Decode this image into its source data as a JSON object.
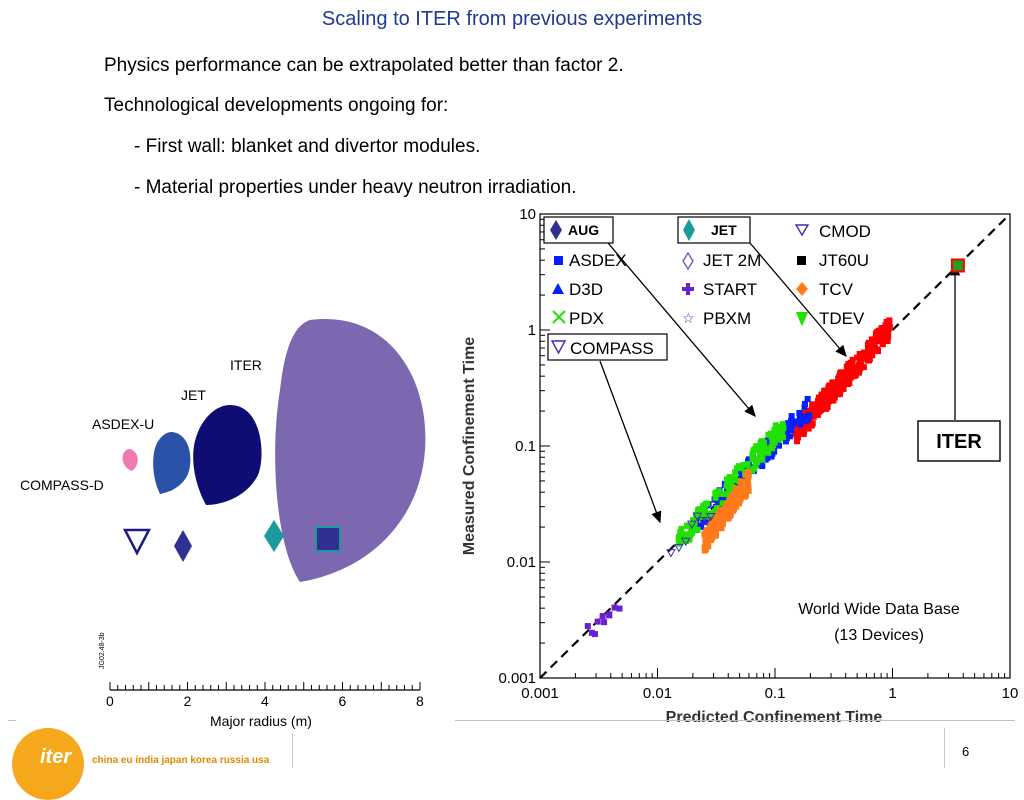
{
  "slide": {
    "title": "Scaling to ITER from previous experiments",
    "bullets": [
      "Physics performance can be extrapolated better than factor 2.",
      "Technological developments ongoing for:",
      "- First wall: blanket and divertor modules.",
      "- Material properties under heavy neutron irradiation."
    ],
    "page_number": "6",
    "logo_text": "iter",
    "tagline": "china eu india japan korea russia usa"
  },
  "colors": {
    "title": "#1f3a93",
    "iter_shape": "#7b68b0",
    "jet_shape": "#0d0d73",
    "asdex_shape": "#2a52a8",
    "compass_shape": "#f07ab0",
    "aug": "#2e3192",
    "jet_marker": "#1a9a9a",
    "red": "#ff0000",
    "green": "#22e000",
    "blue": "#0020ff",
    "orange": "#ff7a1a",
    "purple": "#6a1fd0"
  },
  "chart_data": [
    {
      "type": "diagram",
      "xlabel": "Major radius (m)",
      "xticks": [
        "0",
        "2",
        "4",
        "6",
        "8"
      ],
      "xlim": [
        0,
        8
      ],
      "vertical_tick_label": "JG02.48-3b",
      "devices": [
        {
          "name": "ITER",
          "major_radius": 6.2
        },
        {
          "name": "JET",
          "major_radius": 3.0
        },
        {
          "name": "ASDEX-U",
          "major_radius": 1.65
        },
        {
          "name": "COMPASS-D",
          "major_radius": 0.56
        }
      ]
    },
    {
      "type": "scatter",
      "xlabel": "Predicted Confinement Time",
      "ylabel": "Measured Confinement Time",
      "xscale": "log",
      "yscale": "log",
      "xlim": [
        0.001,
        10
      ],
      "ylim": [
        0.001,
        10
      ],
      "xticks": [
        "0.001",
        "0.01",
        "0.1",
        "1",
        "10"
      ],
      "yticks": [
        "0.001",
        "0.01",
        "0.1",
        "1",
        "10"
      ],
      "annotation": [
        "World Wide Data Base",
        "(13 Devices)"
      ],
      "legend": [
        [
          "AUG",
          "JET",
          "CMOD"
        ],
        [
          "ASDEX",
          "JET 2M",
          "JT60U"
        ],
        [
          "D3D",
          "START",
          "TCV"
        ],
        [
          "PDX",
          "PBXM",
          "TDEV"
        ],
        [
          "COMPASS"
        ]
      ],
      "iter_label": "ITER",
      "iter_point": {
        "x": 3.6,
        "y": 3.6
      },
      "clusters": [
        {
          "color": "#ff0000",
          "x": [
            0.15,
            1.0
          ],
          "y": [
            0.13,
            1.1
          ]
        },
        {
          "color": "#0020ff",
          "x": [
            0.02,
            0.2
          ],
          "y": [
            0.02,
            0.22
          ]
        },
        {
          "color": "#22e000",
          "x": [
            0.015,
            0.12
          ],
          "y": [
            0.015,
            0.15
          ]
        },
        {
          "color": "#ff7a1a",
          "x": [
            0.025,
            0.06
          ],
          "y": [
            0.015,
            0.05
          ]
        },
        {
          "color": "#6a1fd0",
          "x": [
            0.0025,
            0.005
          ],
          "y": [
            0.0025,
            0.005
          ]
        }
      ]
    }
  ]
}
